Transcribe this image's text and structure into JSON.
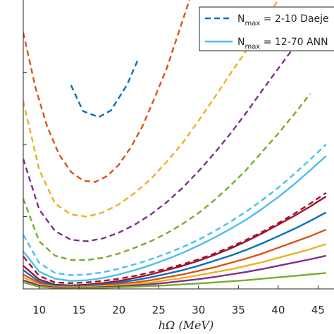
{
  "chart_data": {
    "type": "line",
    "xlabel": "hΩ (MeV)",
    "x_ticks": [
      10,
      15,
      20,
      25,
      30,
      35,
      40,
      45
    ],
    "xlim": [
      8,
      47
    ],
    "ylim": [
      0,
      40
    ],
    "grid": false,
    "legend_placement": "top-right",
    "legend": [
      {
        "prefix": "N",
        "sub": "max",
        "text": " = 2-10 Daeje",
        "style": "dashed",
        "color": "#0072BD"
      },
      {
        "prefix": "N",
        "sub": "max",
        "text": " = 12-70 ANN",
        "style": "solid",
        "color": "#4DBEEE"
      }
    ],
    "series": [
      {
        "style": "dashed",
        "color": "#0072BD",
        "x": [
          14,
          15.5,
          17.5,
          19,
          21,
          22.5
        ],
        "y": [
          28.2,
          24.6,
          23.8,
          24.7,
          28.2,
          32.0
        ]
      },
      {
        "style": "dashed",
        "color": "#D95319",
        "x": [
          8,
          9.5,
          11,
          12.5,
          14,
          15.5,
          17,
          18.5,
          20,
          21.5,
          23,
          24.5,
          26,
          27.5,
          29
        ],
        "y": [
          35.5,
          28.0,
          22.5,
          18.6,
          16.2,
          15.0,
          14.8,
          15.6,
          17.2,
          19.6,
          22.6,
          26.5,
          30.5,
          35.5,
          40.5
        ]
      },
      {
        "style": "dashed",
        "color": "#EDB120",
        "x": [
          8,
          10,
          12,
          14,
          16,
          18,
          20,
          22,
          24,
          26,
          28,
          30,
          32,
          34,
          36,
          38,
          40
        ],
        "y": [
          26.0,
          16.5,
          11.8,
          10.3,
          10.0,
          10.6,
          11.7,
          13.3,
          15.2,
          17.6,
          20.2,
          23.3,
          26.5,
          29.8,
          33.0,
          36.5,
          40.0
        ]
      },
      {
        "style": "dashed",
        "color": "#7E2F8E",
        "x": [
          8,
          10,
          12,
          14,
          16,
          18,
          20,
          22,
          24,
          26,
          28,
          30,
          32,
          34,
          36,
          38,
          40,
          42
        ],
        "y": [
          18.0,
          11.0,
          8.0,
          6.8,
          6.6,
          7.0,
          7.8,
          8.9,
          10.3,
          12.0,
          14.0,
          16.3,
          18.8,
          21.5,
          24.4,
          27.5,
          30.5,
          33.5
        ]
      },
      {
        "style": "dashed",
        "color": "#77AC30",
        "x": [
          8,
          10,
          12,
          14,
          16,
          18,
          20,
          22,
          24,
          26,
          28,
          30,
          32,
          34,
          36,
          38,
          40,
          42,
          44
        ],
        "y": [
          12.5,
          6.6,
          4.6,
          4.0,
          4.0,
          4.3,
          4.9,
          5.7,
          6.6,
          7.7,
          9.0,
          10.5,
          12.3,
          14.3,
          16.5,
          19.0,
          21.5,
          24.2,
          27.0
        ]
      },
      {
        "style": "dashed",
        "color": "#4DBEEE",
        "x": [
          8,
          10,
          12,
          14,
          16,
          18,
          20,
          22,
          24,
          26,
          28,
          30,
          32,
          34,
          36,
          38,
          40,
          42,
          44,
          46
        ],
        "y": [
          7.5,
          3.6,
          2.2,
          1.9,
          2.0,
          2.3,
          2.8,
          3.4,
          4.1,
          4.9,
          5.8,
          6.8,
          8.0,
          9.3,
          10.7,
          12.3,
          14.0,
          15.9,
          17.9,
          20.0
        ]
      },
      {
        "style": "dashed",
        "color": "#A2142F",
        "x": [
          8,
          10,
          12,
          14,
          16,
          18,
          20,
          22,
          24,
          26,
          28,
          30,
          32,
          34,
          36,
          38,
          40,
          42,
          44,
          46
        ],
        "y": [
          4.5,
          1.8,
          0.9,
          0.8,
          0.9,
          1.1,
          1.4,
          1.8,
          2.3,
          2.8,
          3.4,
          4.1,
          4.9,
          5.8,
          6.8,
          7.9,
          9.1,
          10.4,
          11.8,
          13.3
        ]
      },
      {
        "style": "solid",
        "color": "#4DBEEE",
        "x": [
          8,
          10,
          12,
          14,
          16,
          18,
          20,
          22,
          24,
          26,
          28,
          30,
          32,
          34,
          36,
          38,
          40,
          42,
          44,
          46
        ],
        "y": [
          5.2,
          2.4,
          1.4,
          1.1,
          1.2,
          1.5,
          2.0,
          2.6,
          3.3,
          4.1,
          5.0,
          6.0,
          7.1,
          8.3,
          9.6,
          11.1,
          12.7,
          14.5,
          16.4,
          18.4
        ]
      },
      {
        "style": "solid",
        "color": "#A2142F",
        "x": [
          8,
          10,
          12,
          14,
          16,
          18,
          20,
          22,
          24,
          26,
          28,
          30,
          32,
          34,
          36,
          38,
          40,
          42,
          44,
          46
        ],
        "y": [
          3.2,
          1.3,
          0.6,
          0.5,
          0.6,
          0.8,
          1.1,
          1.5,
          2.0,
          2.6,
          3.2,
          3.9,
          4.7,
          5.6,
          6.6,
          7.7,
          8.9,
          10.1,
          11.4,
          12.8
        ]
      },
      {
        "style": "solid",
        "color": "#0072BD",
        "x": [
          8,
          10,
          12,
          14,
          16,
          18,
          20,
          22,
          24,
          26,
          28,
          30,
          32,
          34,
          36,
          38,
          40,
          42,
          44,
          46
        ],
        "y": [
          2.6,
          1.0,
          0.5,
          0.4,
          0.5,
          0.6,
          0.9,
          1.2,
          1.6,
          2.1,
          2.6,
          3.2,
          3.9,
          4.6,
          5.4,
          6.3,
          7.3,
          8.3,
          9.4,
          10.6
        ]
      },
      {
        "style": "solid",
        "color": "#D95319",
        "x": [
          8,
          10,
          12,
          14,
          16,
          18,
          20,
          22,
          24,
          26,
          28,
          30,
          32,
          34,
          36,
          38,
          40,
          42,
          44,
          46
        ],
        "y": [
          2.0,
          0.8,
          0.35,
          0.3,
          0.35,
          0.5,
          0.7,
          0.9,
          1.2,
          1.6,
          2.0,
          2.5,
          3.0,
          3.6,
          4.2,
          4.9,
          5.7,
          6.5,
          7.3,
          8.2
        ]
      },
      {
        "style": "solid",
        "color": "#EDB120",
        "x": [
          8,
          10,
          12,
          14,
          16,
          18,
          20,
          22,
          24,
          26,
          28,
          30,
          32,
          34,
          36,
          38,
          40,
          42,
          44,
          46
        ],
        "y": [
          1.6,
          0.6,
          0.25,
          0.2,
          0.25,
          0.35,
          0.5,
          0.7,
          0.9,
          1.2,
          1.5,
          1.9,
          2.3,
          2.7,
          3.2,
          3.7,
          4.3,
          4.9,
          5.5,
          6.2
        ]
      },
      {
        "style": "solid",
        "color": "#7E2F8E",
        "x": [
          8,
          10,
          12,
          14,
          16,
          18,
          20,
          22,
          24,
          26,
          28,
          30,
          32,
          34,
          36,
          38,
          40,
          42,
          44,
          46
        ],
        "y": [
          1.2,
          0.45,
          0.2,
          0.15,
          0.18,
          0.25,
          0.35,
          0.5,
          0.65,
          0.85,
          1.1,
          1.35,
          1.65,
          2.0,
          2.35,
          2.75,
          3.2,
          3.65,
          4.1,
          4.6
        ]
      },
      {
        "style": "solid",
        "color": "#77AC30",
        "x": [
          8,
          10,
          12,
          14,
          16,
          18,
          20,
          22,
          24,
          26,
          28,
          30,
          32,
          34,
          36,
          38,
          40,
          42,
          44,
          46
        ],
        "y": [
          0.9,
          0.3,
          0.12,
          0.1,
          0.12,
          0.16,
          0.22,
          0.3,
          0.4,
          0.5,
          0.62,
          0.75,
          0.9,
          1.05,
          1.2,
          1.4,
          1.6,
          1.8,
          2.0,
          2.2
        ]
      }
    ]
  }
}
